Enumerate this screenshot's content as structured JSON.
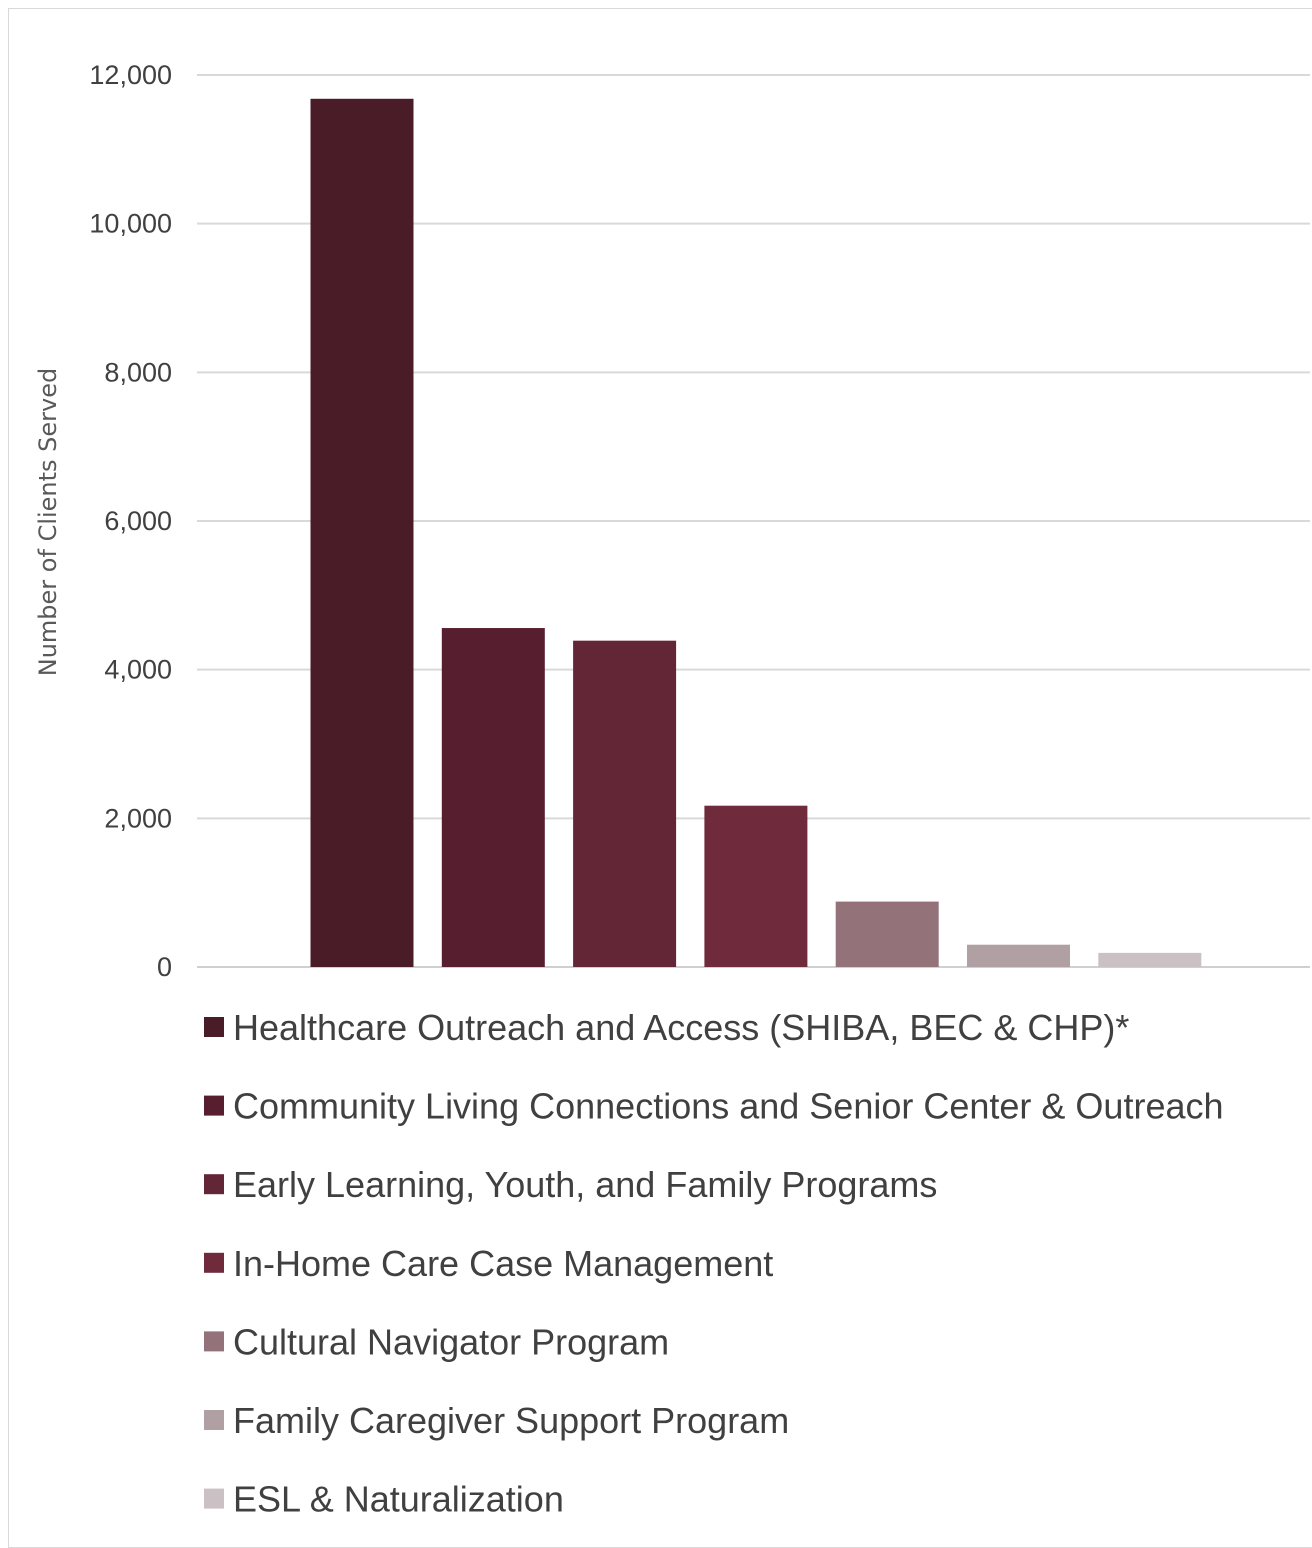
{
  "chart_data": {
    "type": "bar",
    "title": "",
    "xlabel": "",
    "ylabel": "Number of Clients Served",
    "ylim": [
      0,
      12000
    ],
    "yticks": [
      0,
      2000,
      4000,
      6000,
      8000,
      10000,
      12000
    ],
    "ytick_labels": [
      "0",
      "2,000",
      "4,000",
      "6,000",
      "8,000",
      "10,000",
      "12,000"
    ],
    "grid": true,
    "legend_position": "bottom",
    "categories": [
      "Healthcare Outreach and Access (SHIBA, BEC & CHP)*",
      "Community Living Connections and Senior Center & Outreach",
      "Early Learning, Youth, and Family Programs",
      "In-Home Care Case Management",
      "Cultural Navigator Program",
      "Family Caregiver Support Program",
      "ESL & Naturalization"
    ],
    "values": [
      11680,
      4560,
      4390,
      2170,
      880,
      300,
      190
    ],
    "colors": [
      "#4a1c28",
      "#561e2f",
      "#632636",
      "#6f2b3c",
      "#93727a",
      "#b0a0a4",
      "#cbc0c3"
    ]
  }
}
